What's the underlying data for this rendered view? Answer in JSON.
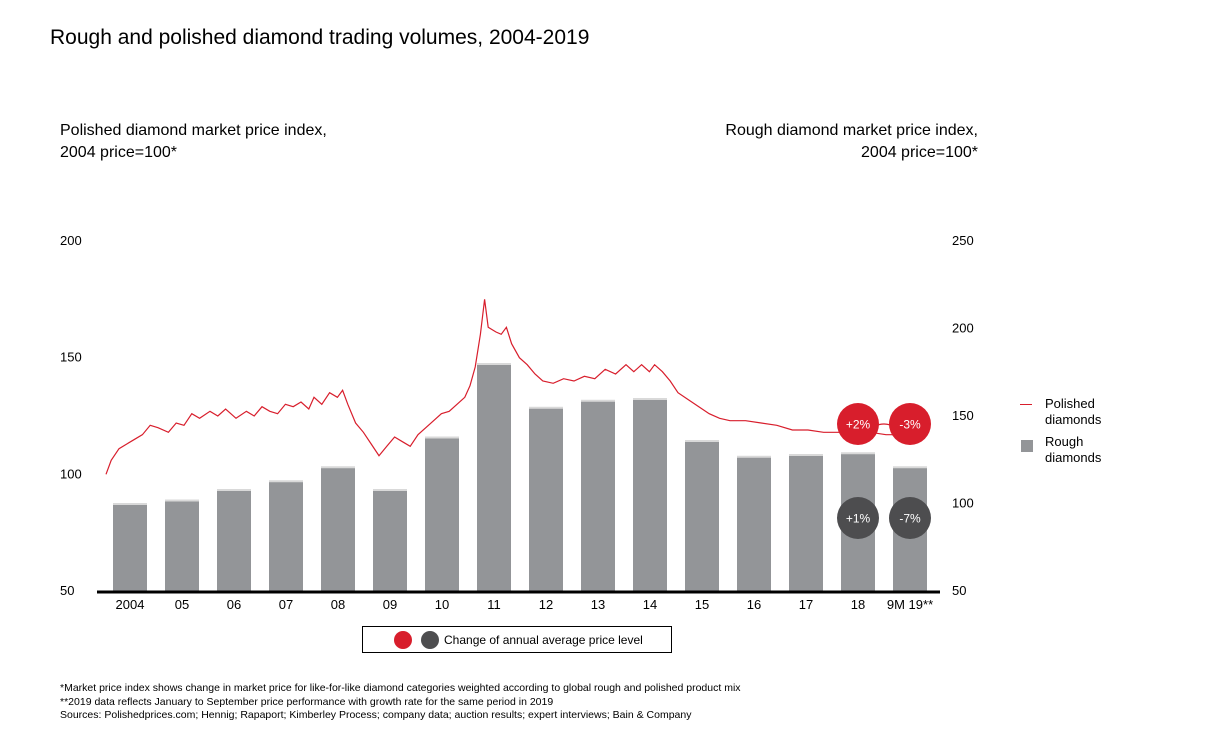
{
  "title": "Rough and polished diamond trading volumes, 2004-2019",
  "left_axis_title": [
    "Polished diamond market price index,",
    "2004 price=100*"
  ],
  "right_axis_title": [
    "Rough diamond market price index,",
    "2004 price=100*"
  ],
  "legend": {
    "polished": [
      "Polished",
      "diamonds"
    ],
    "rough": [
      "Rough",
      "diamonds"
    ]
  },
  "change_legend_label": "Change of annual average price level",
  "notes": [
    "*Market price index shows change in market price for like-for-like diamond categories weighted according to global rough and polished product mix",
    "**2019 data reflects January to September price performance with growth rate for the same period in 2019",
    "Sources: Polishedprices.com; Hennig; Rapaport; Kimberley Process; company data; auction results; expert interviews; Bain & Company"
  ],
  "colors": {
    "polished_line": "#d81e2c",
    "rough_bar": "#939598",
    "badge_red": "#d81e2c",
    "badge_dark": "#4d4d4f"
  },
  "chart_data": {
    "type": "bar+line",
    "categories": [
      "2004",
      "05",
      "06",
      "07",
      "08",
      "09",
      "10",
      "11",
      "12",
      "13",
      "14",
      "15",
      "16",
      "17",
      "18",
      "9M 19**"
    ],
    "left_axis": {
      "range": [
        50,
        200
      ],
      "ticks": [
        "50",
        "100",
        "150",
        "200"
      ]
    },
    "right_axis": {
      "range": [
        50,
        250
      ],
      "ticks": [
        "50",
        "100",
        "150",
        "200",
        "250"
      ]
    },
    "series": [
      {
        "name": "Rough diamonds",
        "type": "bar",
        "axis": "right",
        "values": [
          100,
          102,
          108,
          113,
          121,
          108,
          138,
          180,
          155,
          159,
          160,
          136,
          127,
          128,
          129,
          121
        ]
      },
      {
        "name": "Polished diamonds",
        "type": "line",
        "axis": "left",
        "points": [
          [
            2004.0,
            100
          ],
          [
            2004.1,
            106
          ],
          [
            2004.25,
            111
          ],
          [
            2004.4,
            113
          ],
          [
            2004.55,
            115
          ],
          [
            2004.7,
            117
          ],
          [
            2004.85,
            121
          ],
          [
            2005.0,
            120
          ],
          [
            2005.2,
            118
          ],
          [
            2005.35,
            122
          ],
          [
            2005.5,
            121
          ],
          [
            2005.65,
            126
          ],
          [
            2005.8,
            124
          ],
          [
            2006.0,
            127
          ],
          [
            2006.15,
            125
          ],
          [
            2006.3,
            128
          ],
          [
            2006.5,
            124
          ],
          [
            2006.7,
            127
          ],
          [
            2006.85,
            125
          ],
          [
            2007.0,
            129
          ],
          [
            2007.15,
            127
          ],
          [
            2007.3,
            126
          ],
          [
            2007.45,
            130
          ],
          [
            2007.6,
            129
          ],
          [
            2007.75,
            131
          ],
          [
            2007.9,
            128
          ],
          [
            2008.0,
            133
          ],
          [
            2008.15,
            130
          ],
          [
            2008.3,
            135
          ],
          [
            2008.45,
            133
          ],
          [
            2008.55,
            136
          ],
          [
            2008.65,
            130
          ],
          [
            2008.8,
            122
          ],
          [
            2008.95,
            118
          ],
          [
            2009.1,
            113
          ],
          [
            2009.25,
            108
          ],
          [
            2009.4,
            112
          ],
          [
            2009.55,
            116
          ],
          [
            2009.7,
            114
          ],
          [
            2009.85,
            112
          ],
          [
            2010.0,
            117
          ],
          [
            2010.15,
            120
          ],
          [
            2010.3,
            123
          ],
          [
            2010.45,
            126
          ],
          [
            2010.6,
            127
          ],
          [
            2010.75,
            130
          ],
          [
            2010.9,
            133
          ],
          [
            2011.0,
            138
          ],
          [
            2011.1,
            146
          ],
          [
            2011.2,
            160
          ],
          [
            2011.28,
            175
          ],
          [
            2011.35,
            163
          ],
          [
            2011.5,
            161
          ],
          [
            2011.6,
            160
          ],
          [
            2011.7,
            163
          ],
          [
            2011.8,
            156
          ],
          [
            2011.95,
            150
          ],
          [
            2012.1,
            147
          ],
          [
            2012.25,
            143
          ],
          [
            2012.4,
            140
          ],
          [
            2012.6,
            139
          ],
          [
            2012.8,
            141
          ],
          [
            2013.0,
            140
          ],
          [
            2013.2,
            142
          ],
          [
            2013.4,
            141
          ],
          [
            2013.6,
            145
          ],
          [
            2013.8,
            143
          ],
          [
            2014.0,
            147
          ],
          [
            2014.15,
            144
          ],
          [
            2014.3,
            147
          ],
          [
            2014.45,
            144
          ],
          [
            2014.55,
            147
          ],
          [
            2014.7,
            144
          ],
          [
            2014.85,
            140
          ],
          [
            2015.0,
            135
          ],
          [
            2015.2,
            132
          ],
          [
            2015.4,
            129
          ],
          [
            2015.6,
            126
          ],
          [
            2015.8,
            124
          ],
          [
            2016.0,
            123
          ],
          [
            2016.3,
            123
          ],
          [
            2016.6,
            122
          ],
          [
            2016.9,
            121
          ],
          [
            2017.2,
            119
          ],
          [
            2017.5,
            119
          ],
          [
            2017.8,
            118
          ],
          [
            2018.1,
            118
          ],
          [
            2018.4,
            118
          ],
          [
            2018.7,
            118
          ],
          [
            2019.0,
            117
          ],
          [
            2019.3,
            117
          ],
          [
            2019.6,
            117
          ]
        ]
      }
    ],
    "annotations": [
      {
        "category": "18",
        "text": "+2%",
        "style": "red"
      },
      {
        "category": "9M 19**",
        "text": "-3%",
        "style": "red"
      },
      {
        "category": "18",
        "text": "+1%",
        "style": "dark"
      },
      {
        "category": "9M 19**",
        "text": "-7%",
        "style": "dark"
      }
    ]
  }
}
